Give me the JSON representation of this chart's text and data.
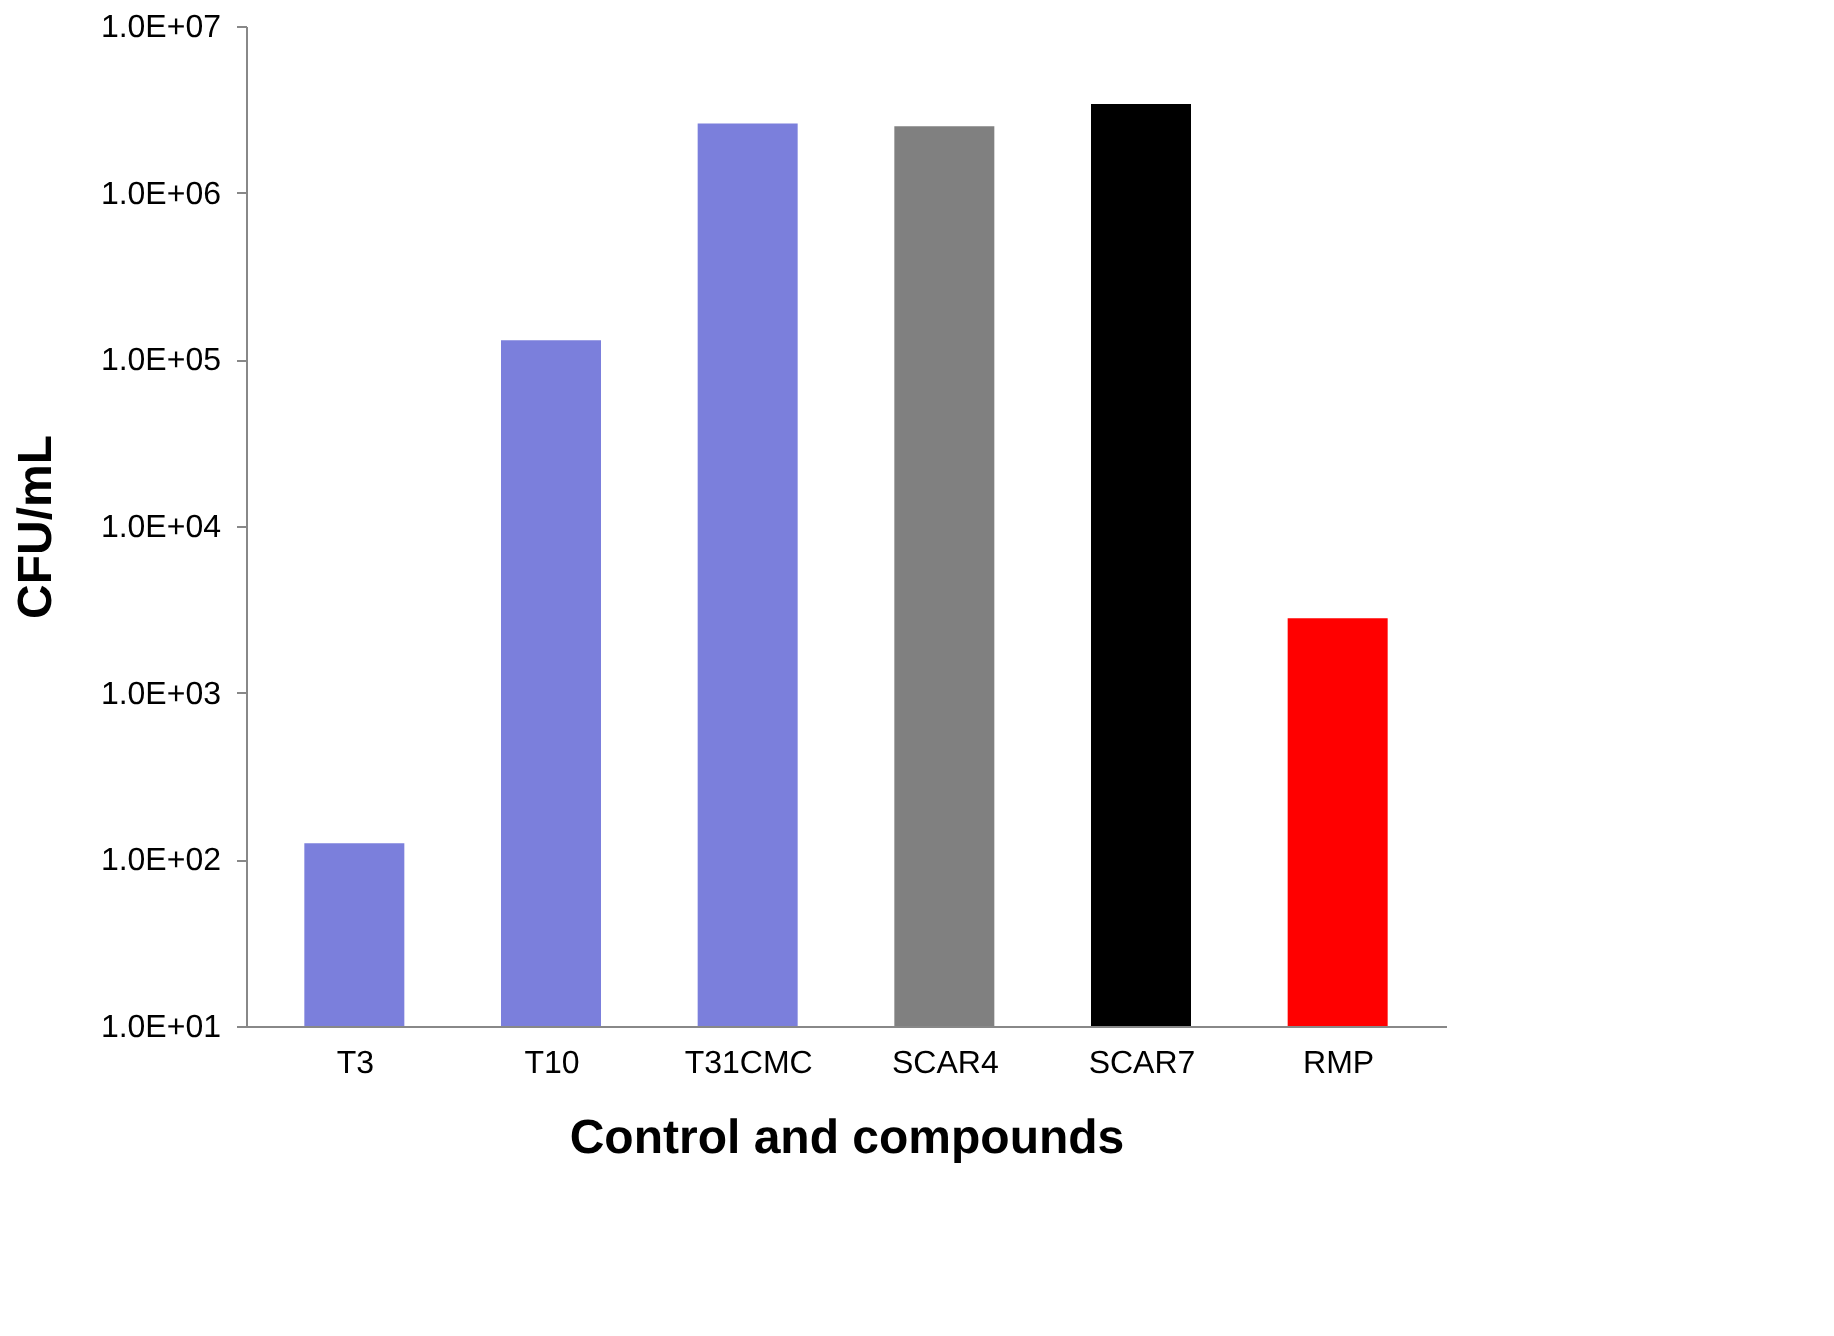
{
  "chart_data": {
    "type": "bar",
    "xlabel": "Control and compounds",
    "ylabel": "CFU/mL",
    "categories": [
      "T3",
      "T10",
      "T31CMC",
      "SCAR4",
      "SCAR7",
      "RMP"
    ],
    "values": [
      125,
      130000,
      2600000,
      2500000,
      3400000,
      2800
    ],
    "colors": [
      "#7b7fdc",
      "#7b7fdc",
      "#7b7fdc",
      "#808080",
      "#000000",
      "#ff0000"
    ],
    "log": true,
    "ylim": [
      10,
      10000000
    ],
    "yticks": [
      {
        "value": 10,
        "label": "1.0E+01"
      },
      {
        "value": 100,
        "label": "1.0E+02"
      },
      {
        "value": 1000,
        "label": "1.0E+03"
      },
      {
        "value": 10000,
        "label": "1.0E+04"
      },
      {
        "value": 100000,
        "label": "1.0E+05"
      },
      {
        "value": 1000000,
        "label": "1.0E+06"
      },
      {
        "value": 10000000,
        "label": "1.0E+07"
      }
    ],
    "grid": false
  }
}
